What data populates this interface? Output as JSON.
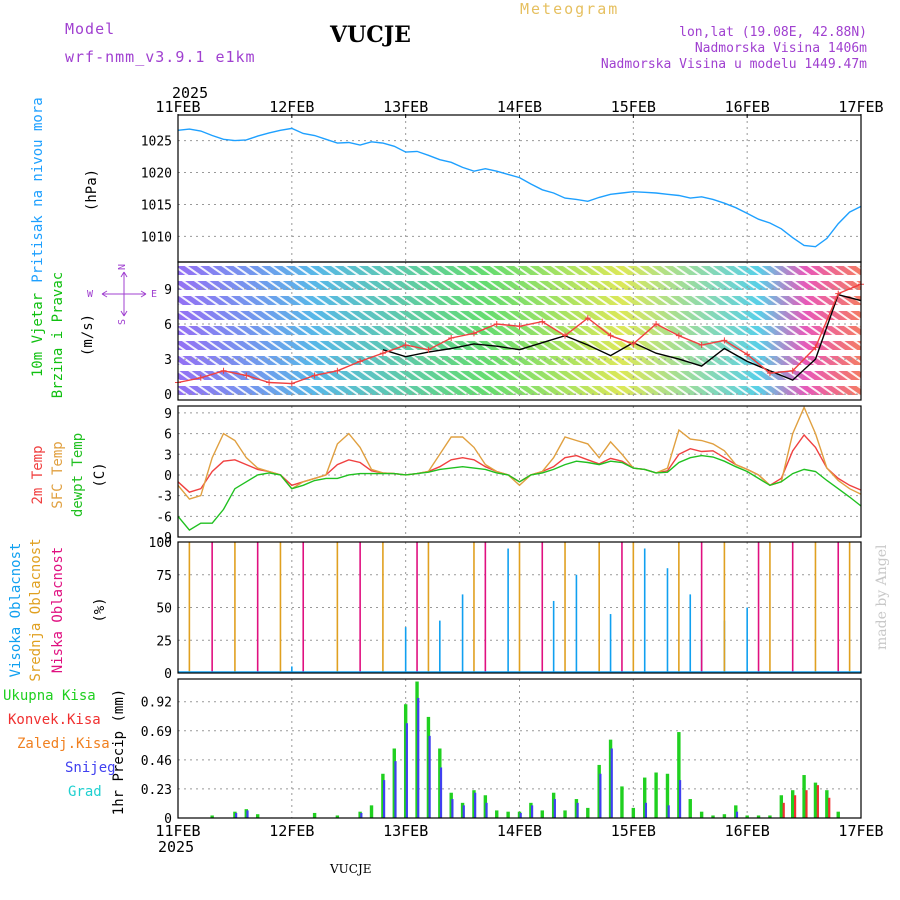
{
  "header": {
    "model_label": "Model",
    "model_name": "wrf-nmm_v3.9.1 e1km",
    "station": "VUCJE",
    "meteogram": "Meteogram",
    "lonlat": "lon,lat (19.08E, 42.88N)",
    "elevation": "Nadmorska Visina 1406m",
    "model_elevation": "Nadmorska Visina u modelu 1449.47m",
    "year_top": "2025",
    "year_bottom": "2025",
    "footer_station": "VUCJE",
    "credit": "made by Angel"
  },
  "colors": {
    "model": "#a040d0",
    "meteogram": "#e6c060",
    "pressure": "#1ea0ff",
    "wind_label": "#10c010",
    "temp2m": "#f04040",
    "sfc": "#e0a040",
    "dewpt": "#20c020",
    "high_cloud": "#10a0f0",
    "mid_cloud": "#e0a020",
    "low_cloud": "#e01080",
    "total_precip": "#20d020",
    "conv_precip": "#f03030",
    "frozen": "#f08020",
    "snow": "#4040f0",
    "hail": "#20d0d0",
    "credit": "#c8c8c8"
  },
  "chart_data": [
    {
      "type": "line",
      "name": "pressure",
      "x_categories": [
        "11FEB",
        "12FEB",
        "13FEB",
        "14FEB",
        "15FEB",
        "16FEB",
        "17FEB"
      ],
      "ylabel_lines": [
        "Pritisak na nivou mora",
        "(hPa)"
      ],
      "yticks": [
        1010,
        1015,
        1020,
        1025
      ],
      "ylim": [
        1006,
        1029
      ],
      "series": [
        {
          "color": "#1ea0ff",
          "x": [
            0,
            0.1,
            0.2,
            0.3,
            0.4,
            0.5,
            0.6,
            0.7,
            0.8,
            0.9,
            1.0,
            1.1,
            1.2,
            1.3,
            1.4,
            1.5,
            1.6,
            1.7,
            1.8,
            1.9,
            2.0,
            2.1,
            2.2,
            2.3,
            2.4,
            2.5,
            2.6,
            2.7,
            2.8,
            2.9,
            3.0,
            3.1,
            3.2,
            3.3,
            3.4,
            3.5,
            3.6,
            3.7,
            3.8,
            3.9,
            4.0,
            4.1,
            4.2,
            4.3,
            4.4,
            4.5,
            4.6,
            4.7,
            4.8,
            4.9,
            5.0,
            5.1,
            5.2,
            5.3,
            5.4,
            5.5,
            5.6,
            5.7,
            5.8,
            5.9,
            6.0
          ],
          "y": [
            1026.6,
            1026.8,
            1026.5,
            1025.8,
            1025.2,
            1025.0,
            1025.1,
            1025.7,
            1026.2,
            1026.6,
            1026.9,
            1026.1,
            1025.8,
            1025.2,
            1024.6,
            1024.7,
            1024.3,
            1024.8,
            1024.6,
            1024.1,
            1023.2,
            1023.3,
            1022.7,
            1022.0,
            1021.6,
            1020.8,
            1020.2,
            1020.6,
            1020.2,
            1019.7,
            1019.2,
            1018.2,
            1017.3,
            1016.8,
            1016.0,
            1015.8,
            1015.5,
            1016.1,
            1016.6,
            1016.8,
            1017.0,
            1016.9,
            1016.8,
            1016.6,
            1016.4,
            1016.0,
            1016.2,
            1015.8,
            1015.2,
            1014.5,
            1013.6,
            1012.7,
            1012.1,
            1011.2,
            1009.8,
            1008.6,
            1008.4,
            1009.7,
            1012.0,
            1013.8,
            1014.7
          ]
        }
      ]
    },
    {
      "type": "line",
      "name": "wind",
      "x_categories": [
        "11FEB",
        "12FEB",
        "13FEB",
        "14FEB",
        "15FEB",
        "16FEB",
        "17FEB"
      ],
      "ylabel_lines": [
        "10m Vjetar",
        "Brzina i Pravac",
        "(m/s)"
      ],
      "compass": {
        "w": "W",
        "e": "E",
        "n": "N",
        "s": "S"
      },
      "yticks": [
        0,
        3,
        6,
        9
      ],
      "ylim": [
        -0.5,
        11.3
      ],
      "series": [
        {
          "color": "#000000",
          "x": [
            1.8,
            2.0,
            2.2,
            2.4,
            2.6,
            2.8,
            3.0,
            3.2,
            3.4,
            3.6,
            3.8,
            4.0,
            4.2,
            4.4,
            4.6,
            4.8,
            5.0,
            5.2,
            5.4,
            5.6,
            5.8,
            6.0
          ],
          "y": [
            3.8,
            3.2,
            3.6,
            3.9,
            4.3,
            4.1,
            3.8,
            4.4,
            5.0,
            4.2,
            3.3,
            4.4,
            3.5,
            3.0,
            2.4,
            3.9,
            2.8,
            2.0,
            1.2,
            3.0,
            8.5,
            8.0
          ]
        },
        {
          "color": "#f04040",
          "x": [
            0,
            0.2,
            0.4,
            0.6,
            0.8,
            1.0,
            1.2,
            1.4,
            1.6,
            1.8,
            2.0,
            2.2,
            2.4,
            2.6,
            2.8,
            3.0,
            3.2,
            3.4,
            3.6,
            3.8,
            4.0,
            4.2,
            4.4,
            4.6,
            4.8,
            5.0,
            5.2,
            5.4,
            5.6,
            5.8,
            6.0
          ],
          "y": [
            1.0,
            1.4,
            2.0,
            1.6,
            1.0,
            0.9,
            1.6,
            2.0,
            2.8,
            3.5,
            4.2,
            3.8,
            4.8,
            5.2,
            6.0,
            5.8,
            6.2,
            5.0,
            6.5,
            5.0,
            4.3,
            6.0,
            5.0,
            4.2,
            4.6,
            3.4,
            1.8,
            2.0,
            4.0,
            8.6,
            9.4
          ]
        }
      ]
    },
    {
      "type": "line",
      "name": "temperature",
      "x_categories": [
        "11FEB",
        "12FEB",
        "13FEB",
        "14FEB",
        "15FEB",
        "16FEB",
        "17FEB"
      ],
      "ylabel_lines": [
        "2m Temp",
        "SFC Temp",
        "dewpt Temp",
        "(C)"
      ],
      "yticks": [
        -9,
        -6,
        -3,
        0,
        3,
        6,
        9
      ],
      "ylim": [
        -9,
        10
      ],
      "series": [
        {
          "name": "2m Temp",
          "color": "#f04040",
          "x": [
            0,
            0.1,
            0.2,
            0.3,
            0.4,
            0.5,
            0.6,
            0.7,
            0.8,
            0.9,
            1.0,
            1.1,
            1.2,
            1.3,
            1.4,
            1.5,
            1.6,
            1.7,
            1.8,
            1.9,
            2.0,
            2.1,
            2.2,
            2.3,
            2.4,
            2.5,
            2.6,
            2.7,
            2.8,
            2.9,
            3.0,
            3.1,
            3.2,
            3.3,
            3.4,
            3.5,
            3.6,
            3.7,
            3.8,
            3.9,
            4.0,
            4.1,
            4.2,
            4.3,
            4.4,
            4.5,
            4.6,
            4.7,
            4.8,
            4.9,
            5.0,
            5.1,
            5.2,
            5.3,
            5.4,
            5.5,
            5.6,
            5.7,
            5.8,
            5.9,
            6.0
          ],
          "y": [
            -1.0,
            -2.5,
            -2.0,
            0.5,
            2.0,
            2.2,
            1.5,
            0.8,
            0.5,
            0.0,
            -1.5,
            -1.0,
            -0.5,
            0.0,
            1.5,
            2.2,
            1.8,
            0.6,
            0.3,
            0.2,
            0.0,
            0.2,
            0.5,
            1.2,
            2.2,
            2.5,
            2.2,
            1.2,
            0.5,
            0.0,
            -1.0,
            0.0,
            0.5,
            1.2,
            2.5,
            2.8,
            2.2,
            1.6,
            2.4,
            2.0,
            1.0,
            0.8,
            0.3,
            0.6,
            3.0,
            3.8,
            3.4,
            3.5,
            2.5,
            1.5,
            0.8,
            0.0,
            -1.5,
            -0.5,
            3.5,
            5.8,
            4.0,
            1.0,
            -0.5,
            -1.5,
            -2.2
          ]
        },
        {
          "name": "SFC Temp",
          "color": "#e0a040",
          "x": [
            0,
            0.1,
            0.2,
            0.3,
            0.4,
            0.5,
            0.6,
            0.7,
            0.8,
            0.9,
            1.0,
            1.1,
            1.2,
            1.3,
            1.4,
            1.5,
            1.6,
            1.7,
            1.8,
            1.9,
            2.0,
            2.1,
            2.2,
            2.3,
            2.4,
            2.5,
            2.6,
            2.7,
            2.8,
            2.9,
            3.0,
            3.1,
            3.2,
            3.3,
            3.4,
            3.5,
            3.6,
            3.7,
            3.8,
            3.9,
            4.0,
            4.1,
            4.2,
            4.3,
            4.4,
            4.5,
            4.6,
            4.7,
            4.8,
            4.9,
            5.0,
            5.1,
            5.2,
            5.3,
            5.4,
            5.5,
            5.6,
            5.7,
            5.8,
            5.9,
            6.0
          ],
          "y": [
            -1.5,
            -3.5,
            -3.0,
            2.5,
            6.0,
            5.0,
            2.5,
            1.0,
            0.5,
            0.0,
            -2.0,
            -1.0,
            -0.5,
            0.0,
            4.5,
            6.0,
            4.0,
            0.8,
            0.3,
            0.2,
            0.0,
            0.2,
            0.5,
            3.0,
            5.5,
            5.5,
            4.0,
            1.5,
            0.5,
            0.0,
            -1.5,
            0.0,
            0.5,
            2.5,
            5.5,
            5.0,
            4.5,
            2.5,
            4.8,
            3.0,
            1.0,
            0.8,
            0.3,
            1.0,
            6.5,
            5.2,
            5.0,
            4.5,
            3.5,
            1.5,
            0.8,
            0.0,
            -1.5,
            -1.0,
            6.0,
            9.8,
            6.0,
            1.0,
            -0.8,
            -2.0,
            -2.8
          ]
        },
        {
          "name": "dewpt Temp",
          "color": "#20c020",
          "x": [
            0,
            0.1,
            0.2,
            0.3,
            0.4,
            0.5,
            0.6,
            0.7,
            0.8,
            0.9,
            1.0,
            1.1,
            1.2,
            1.3,
            1.4,
            1.5,
            1.6,
            1.7,
            1.8,
            1.9,
            2.0,
            2.1,
            2.2,
            2.3,
            2.4,
            2.5,
            2.6,
            2.7,
            2.8,
            2.9,
            3.0,
            3.1,
            3.2,
            3.3,
            3.4,
            3.5,
            3.6,
            3.7,
            3.8,
            3.9,
            4.0,
            4.1,
            4.2,
            4.3,
            4.4,
            4.5,
            4.6,
            4.7,
            4.8,
            4.9,
            5.0,
            5.1,
            5.2,
            5.3,
            5.4,
            5.5,
            5.6,
            5.7,
            5.8,
            5.9,
            6.0
          ],
          "y": [
            -6.0,
            -8.0,
            -7.0,
            -7.0,
            -5.0,
            -2.0,
            -1.0,
            0.0,
            0.3,
            0.0,
            -2.0,
            -1.5,
            -0.8,
            -0.5,
            -0.5,
            0.0,
            0.2,
            0.2,
            0.2,
            0.2,
            0.0,
            0.2,
            0.4,
            0.8,
            1.0,
            1.2,
            1.0,
            0.8,
            0.3,
            0.0,
            -1.0,
            0.0,
            0.3,
            0.8,
            1.5,
            2.0,
            1.8,
            1.5,
            2.0,
            1.8,
            1.0,
            0.8,
            0.3,
            0.4,
            1.8,
            2.5,
            2.8,
            2.6,
            2.0,
            1.2,
            0.5,
            -0.5,
            -1.5,
            -1.0,
            0.2,
            0.8,
            0.5,
            -0.8,
            -2.0,
            -3.2,
            -4.5
          ]
        }
      ]
    },
    {
      "type": "bar",
      "name": "clouds",
      "x_categories": [
        "11FEB",
        "12FEB",
        "13FEB",
        "14FEB",
        "15FEB",
        "16FEB",
        "17FEB"
      ],
      "ylabel_lines": [
        "Visoka Oblacnost",
        "Srednja Oblacnost",
        "Niska Oblacnost",
        "(%)"
      ],
      "yticks": [
        0,
        25,
        50,
        75,
        100
      ],
      "ylim": [
        0,
        100
      ],
      "series": [
        {
          "name": "Visoka Oblacnost",
          "color": "#10a0f0",
          "x": [
            1.0,
            2.0,
            2.3,
            2.5,
            2.9,
            3.3,
            3.5,
            3.8,
            4.1,
            4.3,
            4.5,
            4.6,
            4.8,
            5.0
          ],
          "values": [
            5,
            35,
            40,
            60,
            95,
            55,
            75,
            45,
            95,
            80,
            60,
            25,
            40,
            50
          ]
        },
        {
          "name": "Srednja Oblacnost",
          "color": "#e0a020",
          "x": [
            0.1,
            0.5,
            0.9,
            1.4,
            1.8,
            2.2,
            2.6,
            3.0,
            3.4,
            3.7,
            4.0,
            4.4,
            4.8,
            5.2,
            5.6,
            5.9
          ],
          "values": [
            100,
            100,
            100,
            100,
            100,
            100,
            100,
            100,
            100,
            100,
            100,
            100,
            100,
            100,
            100,
            100
          ]
        },
        {
          "name": "Niska Oblacnost",
          "color": "#e01080",
          "x": [
            0.3,
            0.7,
            1.1,
            1.6,
            2.1,
            2.7,
            3.2,
            3.9,
            4.6,
            5.1,
            5.4,
            5.8
          ],
          "values": [
            100,
            100,
            100,
            100,
            100,
            100,
            100,
            100,
            100,
            100,
            100,
            100
          ]
        }
      ]
    },
    {
      "type": "bar",
      "name": "precipitation",
      "x_categories": [
        "11FEB",
        "12FEB",
        "13FEB",
        "14FEB",
        "15FEB",
        "16FEB",
        "17FEB"
      ],
      "ylabel_lines": [
        "1hr Precip (mm)"
      ],
      "legend": [
        "Ukupna Kisa",
        "Konvek.Kisa",
        "Zaledj.Kisa",
        "Snijeg",
        "Grad"
      ],
      "yticks": [
        0,
        0.23,
        0.46,
        0.69,
        0.92
      ],
      "ylim": [
        0,
        1.1
      ],
      "series": [
        {
          "name": "Ukupna Kisa",
          "color": "#20d020",
          "x": [
            0.3,
            0.5,
            0.6,
            0.7,
            1.2,
            1.4,
            1.6,
            1.7,
            1.8,
            1.9,
            2.0,
            2.1,
            2.2,
            2.3,
            2.4,
            2.5,
            2.6,
            2.7,
            2.8,
            2.9,
            3.0,
            3.1,
            3.2,
            3.3,
            3.4,
            3.5,
            3.6,
            3.7,
            3.8,
            3.9,
            4.0,
            4.1,
            4.2,
            4.3,
            4.4,
            4.5,
            4.6,
            4.7,
            4.8,
            4.9,
            5.0,
            5.1,
            5.2,
            5.3,
            5.4,
            5.5,
            5.6,
            5.7,
            5.8
          ],
          "values": [
            0.02,
            0.05,
            0.07,
            0.03,
            0.04,
            0.02,
            0.05,
            0.1,
            0.35,
            0.55,
            0.9,
            1.08,
            0.8,
            0.55,
            0.2,
            0.12,
            0.22,
            0.18,
            0.06,
            0.05,
            0.05,
            0.12,
            0.06,
            0.2,
            0.06,
            0.15,
            0.08,
            0.42,
            0.62,
            0.25,
            0.08,
            0.32,
            0.36,
            0.35,
            0.68,
            0.15,
            0.05,
            0.02,
            0.03,
            0.1,
            0.02,
            0.02,
            0.02,
            0.18,
            0.22,
            0.34,
            0.28,
            0.22,
            0.05
          ]
        },
        {
          "name": "Snijeg",
          "color": "#4040f0",
          "x": [
            0.5,
            0.6,
            1.6,
            1.8,
            1.9,
            2.0,
            2.1,
            2.2,
            2.3,
            2.4,
            2.5,
            2.6,
            2.7,
            3.0,
            3.1,
            3.3,
            3.5,
            3.7,
            3.8,
            4.1,
            4.3,
            4.4,
            4.9
          ],
          "values": [
            0.04,
            0.06,
            0.04,
            0.3,
            0.45,
            0.75,
            0.95,
            0.65,
            0.4,
            0.15,
            0.1,
            0.2,
            0.12,
            0.04,
            0.1,
            0.15,
            0.12,
            0.35,
            0.55,
            0.12,
            0.1,
            0.3,
            0.05
          ]
        },
        {
          "name": "Konvek.Kisa",
          "color": "#f03030",
          "x": [
            5.3,
            5.4,
            5.5,
            5.6,
            5.7
          ],
          "values": [
            0.12,
            0.18,
            0.22,
            0.26,
            0.16
          ]
        }
      ]
    }
  ]
}
